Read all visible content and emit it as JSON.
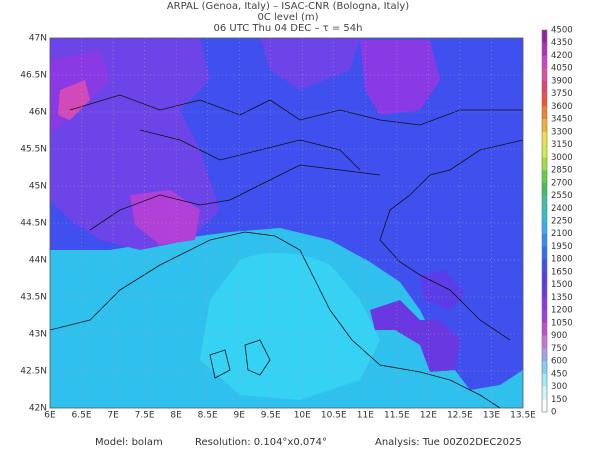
{
  "header": {
    "lines": [
      "ARPAL (Genoa, Italy)  –  ISAC-CNR (Bologna, Italy)",
      "0C level (m)",
      "06 UTC Thu 04 DEC  –  τ = 54h"
    ]
  },
  "map": {
    "lat_labels": [
      "47N",
      "46.5N",
      "46N",
      "45.5N",
      "45N",
      "44.5N",
      "44N",
      "43.5N",
      "43N",
      "42.5N",
      "42N"
    ],
    "lon_labels": [
      "6E",
      "6.5E",
      "7E",
      "7.5E",
      "8E",
      "8.5E",
      "9E",
      "9.5E",
      "10E",
      "10.5E",
      "11E",
      "11.5E",
      "12E",
      "12.5E",
      "13E",
      "13.5E"
    ]
  },
  "colorbar": {
    "labels": [
      "4500",
      "4350",
      "4200",
      "4050",
      "3900",
      "3750",
      "3600",
      "3450",
      "3300",
      "3150",
      "3000",
      "2850",
      "2700",
      "2550",
      "2400",
      "2250",
      "2100",
      "1950",
      "1800",
      "1650",
      "1500",
      "1350",
      "1200",
      "1050",
      "900",
      "750",
      "600",
      "450",
      "300",
      "150",
      "0"
    ]
  },
  "footer": {
    "items": [
      "Model: bolam",
      "Resolution: 0.104°x0.074°",
      "Analysis: Tue 00Z02DEC2025"
    ]
  }
}
